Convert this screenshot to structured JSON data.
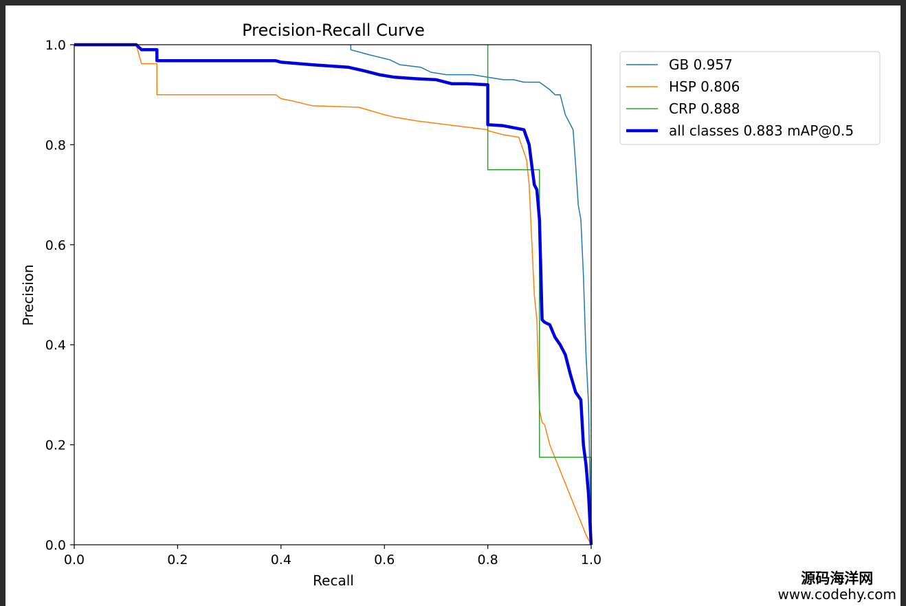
{
  "chart_data": {
    "type": "line",
    "title": "Precision-Recall Curve",
    "xlabel": "Recall",
    "ylabel": "Precision",
    "xlim": [
      0,
      1
    ],
    "ylim": [
      0,
      1
    ],
    "xticks": [
      "0.0",
      "0.2",
      "0.4",
      "0.6",
      "0.8",
      "1.0"
    ],
    "yticks": [
      "0.0",
      "0.2",
      "0.4",
      "0.6",
      "0.8",
      "1.0"
    ],
    "grid": false,
    "legend_position": "outside-top-right",
    "series": [
      {
        "name": "GB 0.957",
        "color": "#1f77b4",
        "width": 1.5,
        "x": [
          0.535,
          0.535,
          0.57,
          0.61,
          0.63,
          0.67,
          0.69,
          0.72,
          0.77,
          0.8,
          0.83,
          0.85,
          0.87,
          0.9,
          0.92,
          0.93,
          0.94,
          0.95,
          0.96,
          0.965,
          0.97,
          0.975,
          0.98,
          0.985,
          0.99,
          0.995,
          1.0
        ],
        "y": [
          1.0,
          0.99,
          0.98,
          0.97,
          0.96,
          0.955,
          0.945,
          0.94,
          0.94,
          0.935,
          0.93,
          0.93,
          0.925,
          0.925,
          0.91,
          0.9,
          0.9,
          0.86,
          0.84,
          0.83,
          0.76,
          0.68,
          0.65,
          0.54,
          0.38,
          0.28,
          0.0
        ]
      },
      {
        "name": "HSP 0.806",
        "color": "#ff7f0e",
        "width": 1.5,
        "x": [
          0.0,
          0.12,
          0.13,
          0.16,
          0.16,
          0.39,
          0.4,
          0.42,
          0.46,
          0.55,
          0.58,
          0.6,
          0.62,
          0.66,
          0.8,
          0.8,
          0.83,
          0.86,
          0.875,
          0.88,
          0.885,
          0.89,
          0.895,
          0.9,
          0.905,
          0.91,
          0.92,
          0.99,
          1.0
        ],
        "y": [
          1.0,
          1.0,
          0.962,
          0.962,
          0.9,
          0.9,
          0.892,
          0.888,
          0.878,
          0.875,
          0.866,
          0.86,
          0.855,
          0.848,
          0.83,
          0.828,
          0.82,
          0.815,
          0.77,
          0.72,
          0.61,
          0.5,
          0.45,
          0.27,
          0.245,
          0.24,
          0.2,
          0.02,
          0.0
        ]
      },
      {
        "name": "CRP 0.888",
        "color": "#2ca02c",
        "width": 1.5,
        "x": [
          0.8,
          0.8,
          0.8,
          0.9,
          0.9,
          1.0,
          1.0
        ],
        "y": [
          1.0,
          0.75,
          0.75,
          0.75,
          0.175,
          0.175,
          0.0
        ]
      },
      {
        "name": "all classes 0.883 mAP@0.5",
        "color": "#0000dd",
        "width": 4.5,
        "x": [
          0.0,
          0.12,
          0.13,
          0.16,
          0.16,
          0.39,
          0.4,
          0.46,
          0.53,
          0.56,
          0.59,
          0.62,
          0.66,
          0.7,
          0.73,
          0.76,
          0.8,
          0.8,
          0.83,
          0.87,
          0.88,
          0.885,
          0.89,
          0.895,
          0.9,
          0.905,
          0.91,
          0.92,
          0.93,
          0.94,
          0.95,
          0.96,
          0.97,
          0.98,
          0.985,
          0.99,
          0.995,
          1.0
        ],
        "y": [
          1.0,
          1.0,
          0.99,
          0.99,
          0.968,
          0.968,
          0.965,
          0.96,
          0.955,
          0.948,
          0.94,
          0.935,
          0.932,
          0.93,
          0.922,
          0.922,
          0.92,
          0.84,
          0.838,
          0.83,
          0.8,
          0.76,
          0.72,
          0.71,
          0.65,
          0.45,
          0.445,
          0.44,
          0.415,
          0.4,
          0.38,
          0.34,
          0.305,
          0.29,
          0.2,
          0.16,
          0.1,
          0.0
        ]
      }
    ]
  },
  "watermark": {
    "line1": "源码海洋网",
    "line2": "www.codehy.com"
  }
}
